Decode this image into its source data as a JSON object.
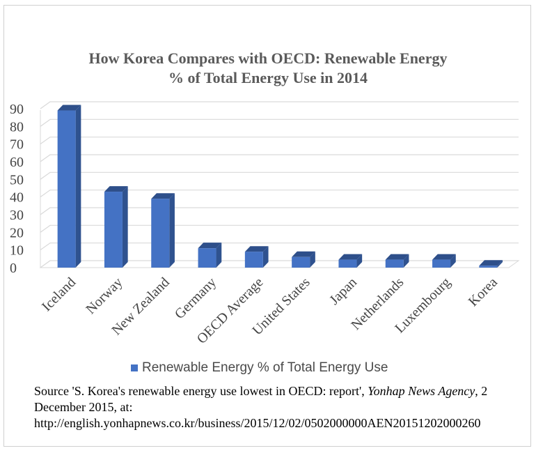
{
  "chart_data": {
    "type": "bar",
    "title_line1": "How Korea Compares with OECD: Renewable Energy",
    "title_line2": "% of Total Energy Use in 2014",
    "categories": [
      "Iceland",
      "Norway",
      "New Zealand",
      "Germany",
      "OECD Average",
      "United States",
      "Japan",
      "Netherlands",
      "Luxembourg",
      "Korea"
    ],
    "series": [
      {
        "name": "Renewable Energy % of Total Energy Use",
        "values": [
          89,
          43,
          39,
          11,
          9,
          6,
          4.5,
          4.5,
          4.5,
          1.1
        ]
      }
    ],
    "ylim": [
      0,
      90
    ],
    "yticks": [
      0,
      10,
      20,
      30,
      40,
      50,
      60,
      70,
      80,
      90
    ],
    "grid": true,
    "legend_position": "bottom",
    "colors": {
      "bar_front": "#4472c4",
      "bar_side": "#2f528f",
      "bar_top": "#2e4f8a",
      "grid": "#d9d9d9"
    }
  },
  "source": {
    "prefix": "Source 'S. Korea's renewable energy use lowest in OECD: report', ",
    "publication": "Yonhap News Agency",
    "suffix": ", 2 December 2015, at:",
    "url": "http://english.yonhapnews.co.kr/business/2015/12/02/0502000000AEN20151202000260"
  }
}
